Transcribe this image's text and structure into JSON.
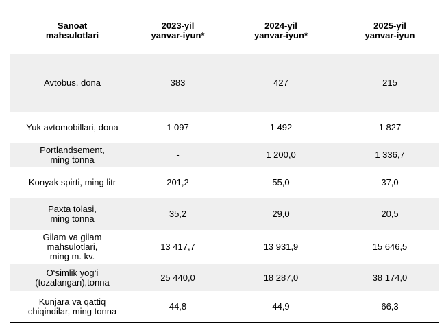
{
  "table": {
    "headers": [
      "Sanoat\nmahsulotlari",
      "2023-yil\nyanvar-iyun*",
      "2024-yil\nyanvar-iyun*",
      "2025-yil\nyanvar-iyun"
    ],
    "rows": [
      {
        "name": "Avtobus, dona",
        "v2023": "383",
        "v2024": "427",
        "v2025": "215"
      },
      {
        "name": "Yuk avtomobillari, dona",
        "v2023": "1 097",
        "v2024": "1 492",
        "v2025": "1 827"
      },
      {
        "name": "Portlandsement,\nming tonna",
        "v2023": "-",
        "v2024": "1 200,0",
        "v2025": "1 336,7"
      },
      {
        "name": "Konyak spirti, ming litr",
        "v2023": "201,2",
        "v2024": "55,0",
        "v2025": "37,0"
      },
      {
        "name": "Paxta tolasi,\nming tonna",
        "v2023": "35,2",
        "v2024": "29,0",
        "v2025": "20,5"
      },
      {
        "name": "Gilam va gilam\nmahsulotlari,\nming m. kv.",
        "v2023": "13 417,7",
        "v2024": "13 931,9",
        "v2025": "15 646,5"
      },
      {
        "name": "O‘simlik yog‘i\n(tozalangan),tonna",
        "v2023": "25 440,0",
        "v2024": "18 287,0",
        "v2025": "38 174,0"
      },
      {
        "name": "Kunjara va qattiq\nchiqindilar, ming tonna",
        "v2023": "44,8",
        "v2024": "44,9",
        "v2025": "66,3"
      }
    ]
  }
}
